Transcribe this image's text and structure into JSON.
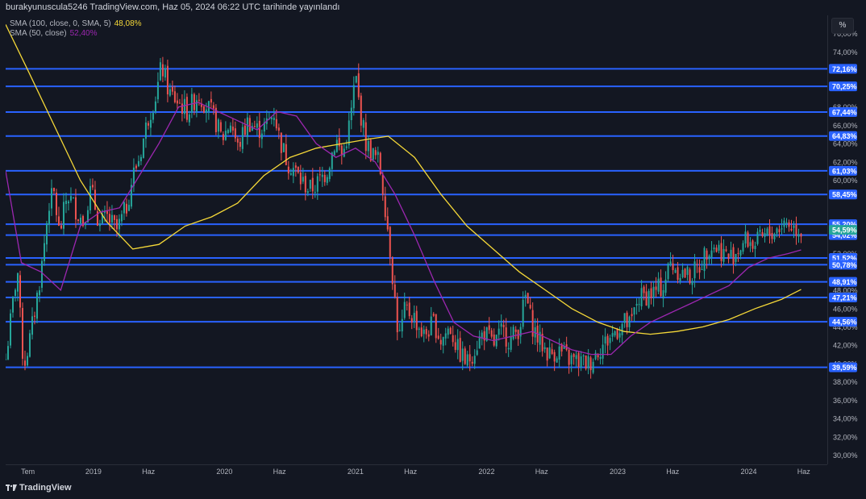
{
  "header": {
    "title": "burakyunuscula5246 TradingView.com, Haz 05, 2024 06:22 UTC tarihinde yayınlandı"
  },
  "legend": [
    {
      "label": "SMA (100, close, 0, SMA, 5)",
      "value": "48,08%",
      "color": "#f5d838"
    },
    {
      "label": "SMA (50, close)",
      "value": "52,40%",
      "color": "#9c27b0"
    }
  ],
  "scale_button": "%",
  "footer": {
    "brand": "TradingView"
  },
  "colors": {
    "background": "#131722",
    "up": "#26a69a",
    "down": "#ef5350",
    "level": "#2962ff",
    "sma100": "#f5d838",
    "sma50": "#9c27b0"
  },
  "chart_data": {
    "type": "candlestick",
    "y_axis": {
      "unit": "%",
      "ylim": [
        29.0,
        78.0
      ],
      "tick_labels": [
        "30,00%",
        "32,00%",
        "34,00%",
        "36,00%",
        "38,00%",
        "40,00%",
        "42,00%",
        "44,00%",
        "46,00%",
        "48,00%",
        "52,00%",
        "60,00%",
        "62,00%",
        "64,00%",
        "66,00%",
        "68,00%",
        "74,00%",
        "76,00%"
      ],
      "tick_values": [
        30,
        32,
        34,
        36,
        38,
        40,
        42,
        44,
        46,
        48,
        52,
        60,
        62,
        64,
        66,
        68,
        74,
        76
      ]
    },
    "x_axis": {
      "range": [
        2018.33,
        2024.6
      ],
      "tick_labels": [
        "Tem",
        "2019",
        "Haz",
        "2020",
        "Haz",
        "2021",
        "Haz",
        "2022",
        "Haz",
        "2023",
        "Haz",
        "2024",
        "Haz"
      ],
      "tick_values": [
        2018.5,
        2019.0,
        2019.42,
        2020.0,
        2020.42,
        2021.0,
        2021.42,
        2022.0,
        2022.42,
        2023.0,
        2023.42,
        2024.0,
        2024.42
      ]
    },
    "levels": [
      {
        "value": 72.16,
        "label": "72,16%"
      },
      {
        "value": 70.25,
        "label": "70,25%"
      },
      {
        "value": 67.44,
        "label": "67,44%"
      },
      {
        "value": 64.83,
        "label": "64,83%"
      },
      {
        "value": 61.03,
        "label": "61,03%"
      },
      {
        "value": 58.45,
        "label": "58,45%"
      },
      {
        "value": 55.2,
        "label": "55,20%"
      },
      {
        "value": 54.02,
        "label": "54,02%"
      },
      {
        "value": 51.52,
        "label": "51,52%"
      },
      {
        "value": 50.78,
        "label": "50,78%"
      },
      {
        "value": 48.91,
        "label": "48,91%"
      },
      {
        "value": 47.21,
        "label": "47,21%"
      },
      {
        "value": 44.56,
        "label": "44,56%"
      },
      {
        "value": 39.59,
        "label": "39,59%"
      }
    ],
    "last_price": {
      "value": 54.59,
      "label": "54,59%"
    },
    "price_path": [
      [
        2018.33,
        40.5
      ],
      [
        2018.38,
        46.0
      ],
      [
        2018.42,
        50.5
      ],
      [
        2018.45,
        42.5
      ],
      [
        2018.47,
        39.8
      ],
      [
        2018.52,
        43.0
      ],
      [
        2018.6,
        50.0
      ],
      [
        2018.66,
        57.5
      ],
      [
        2018.7,
        58.5
      ],
      [
        2018.74,
        54.0
      ],
      [
        2018.8,
        58.5
      ],
      [
        2018.86,
        57.0
      ],
      [
        2018.92,
        55.5
      ],
      [
        2018.98,
        59.0
      ],
      [
        2019.05,
        55.0
      ],
      [
        2019.1,
        56.0
      ],
      [
        2019.18,
        54.5
      ],
      [
        2019.25,
        57.0
      ],
      [
        2019.3,
        60.5
      ],
      [
        2019.35,
        62.5
      ],
      [
        2019.42,
        67.0
      ],
      [
        2019.48,
        69.5
      ],
      [
        2019.52,
        72.5
      ],
      [
        2019.58,
        69.5
      ],
      [
        2019.65,
        68.5
      ],
      [
        2019.72,
        67.5
      ],
      [
        2019.8,
        69.5
      ],
      [
        2019.87,
        68.0
      ],
      [
        2019.93,
        66.5
      ],
      [
        2019.98,
        64.5
      ],
      [
        2020.05,
        66.5
      ],
      [
        2020.1,
        63.5
      ],
      [
        2020.18,
        66.5
      ],
      [
        2020.25,
        65.5
      ],
      [
        2020.32,
        66.0
      ],
      [
        2020.38,
        67.5
      ],
      [
        2020.42,
        64.5
      ],
      [
        2020.48,
        62.0
      ],
      [
        2020.52,
        61.5
      ],
      [
        2020.58,
        60.0
      ],
      [
        2020.65,
        59.0
      ],
      [
        2020.7,
        59.5
      ],
      [
        2020.78,
        61.0
      ],
      [
        2020.85,
        64.5
      ],
      [
        2020.9,
        62.5
      ],
      [
        2020.96,
        66.5
      ],
      [
        2021.0,
        71.5
      ],
      [
        2021.03,
        68.0
      ],
      [
        2021.08,
        64.0
      ],
      [
        2021.12,
        63.0
      ],
      [
        2021.18,
        62.0
      ],
      [
        2021.22,
        58.0
      ],
      [
        2021.26,
        53.0
      ],
      [
        2021.3,
        47.0
      ],
      [
        2021.33,
        42.5
      ],
      [
        2021.38,
        46.0
      ],
      [
        2021.45,
        45.0
      ],
      [
        2021.52,
        43.0
      ],
      [
        2021.6,
        44.5
      ],
      [
        2021.65,
        42.5
      ],
      [
        2021.72,
        44.0
      ],
      [
        2021.78,
        41.5
      ],
      [
        2021.85,
        40.0
      ],
      [
        2021.92,
        42.0
      ],
      [
        2021.98,
        43.5
      ],
      [
        2022.05,
        42.0
      ],
      [
        2022.12,
        43.5
      ],
      [
        2022.18,
        42.5
      ],
      [
        2022.25,
        44.0
      ],
      [
        2022.3,
        47.5
      ],
      [
        2022.34,
        44.5
      ],
      [
        2022.4,
        42.5
      ],
      [
        2022.48,
        41.0
      ],
      [
        2022.55,
        41.5
      ],
      [
        2022.62,
        40.5
      ],
      [
        2022.7,
        40.2
      ],
      [
        2022.78,
        40.0
      ],
      [
        2022.85,
        41.5
      ],
      [
        2022.92,
        42.5
      ],
      [
        2022.98,
        43.5
      ],
      [
        2023.05,
        44.5
      ],
      [
        2023.1,
        44.0
      ],
      [
        2023.15,
        47.0
      ],
      [
        2023.22,
        47.5
      ],
      [
        2023.28,
        47.8
      ],
      [
        2023.35,
        48.5
      ],
      [
        2023.4,
        51.0
      ],
      [
        2023.48,
        50.0
      ],
      [
        2023.55,
        49.5
      ],
      [
        2023.62,
        50.5
      ],
      [
        2023.7,
        53.0
      ],
      [
        2023.78,
        52.5
      ],
      [
        2023.85,
        51.5
      ],
      [
        2023.92,
        52.5
      ],
      [
        2023.98,
        53.5
      ],
      [
        2024.05,
        53.0
      ],
      [
        2024.12,
        53.8
      ],
      [
        2024.2,
        54.5
      ],
      [
        2024.28,
        55.5
      ],
      [
        2024.35,
        54.8
      ],
      [
        2024.4,
        54.59
      ]
    ],
    "series": [
      {
        "name": "SMA (100, close, 0, SMA, 5)",
        "color": "#f5d838",
        "x": [
          2018.33,
          2018.5,
          2018.7,
          2018.9,
          2019.1,
          2019.3,
          2019.5,
          2019.7,
          2019.9,
          2020.1,
          2020.3,
          2020.5,
          2020.7,
          2020.9,
          2021.1,
          2021.25,
          2021.45,
          2021.65,
          2021.85,
          2022.05,
          2022.25,
          2022.45,
          2022.65,
          2022.85,
          2023.05,
          2023.25,
          2023.45,
          2023.65,
          2023.85,
          2024.05,
          2024.25,
          2024.4
        ],
        "values": [
          77.0,
          72.0,
          66.0,
          60.0,
          55.5,
          52.5,
          53.0,
          55.0,
          56.0,
          57.5,
          60.5,
          62.5,
          63.5,
          64.0,
          64.5,
          64.8,
          62.5,
          58.5,
          55.0,
          52.5,
          50.0,
          48.0,
          46.0,
          44.5,
          43.5,
          43.2,
          43.5,
          44.0,
          44.8,
          46.0,
          47.0,
          48.08
        ]
      },
      {
        "name": "SMA (50, close)",
        "color": "#9c27b0",
        "x": [
          2018.33,
          2018.45,
          2018.6,
          2018.75,
          2018.9,
          2019.05,
          2019.2,
          2019.35,
          2019.5,
          2019.65,
          2019.8,
          2019.95,
          2020.1,
          2020.25,
          2020.4,
          2020.55,
          2020.7,
          2020.85,
          2021.0,
          2021.15,
          2021.3,
          2021.45,
          2021.6,
          2021.75,
          2021.9,
          2022.05,
          2022.2,
          2022.35,
          2022.5,
          2022.65,
          2022.8,
          2022.95,
          2023.1,
          2023.25,
          2023.4,
          2023.55,
          2023.7,
          2023.85,
          2024.0,
          2024.15,
          2024.3,
          2024.4
        ],
        "values": [
          61.0,
          51.0,
          50.0,
          48.0,
          55.0,
          56.5,
          57.0,
          60.5,
          64.0,
          68.0,
          68.5,
          67.5,
          66.5,
          65.5,
          67.5,
          67.0,
          64.0,
          62.5,
          63.5,
          62.0,
          58.5,
          54.0,
          49.0,
          44.5,
          43.0,
          42.5,
          43.0,
          43.5,
          42.5,
          41.5,
          41.0,
          41.0,
          43.0,
          44.5,
          45.5,
          46.5,
          47.5,
          48.5,
          50.5,
          51.5,
          52.0,
          52.4
        ]
      }
    ]
  }
}
